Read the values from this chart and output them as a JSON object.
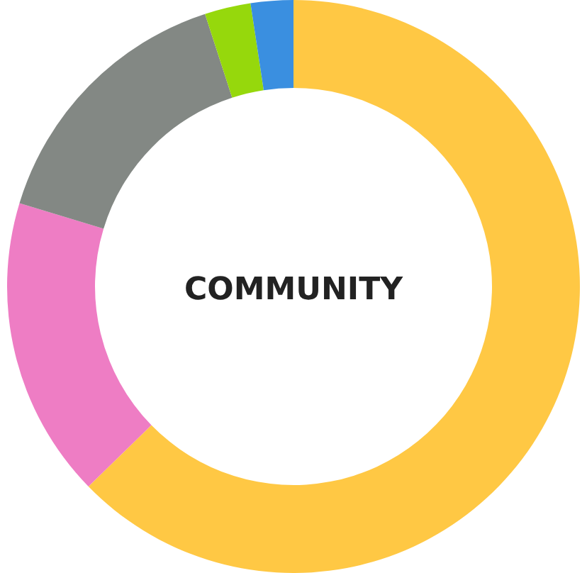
{
  "chart_data": {
    "type": "donut",
    "title": "COMMUNITY",
    "categories": [
      null,
      null,
      null,
      null,
      null
    ],
    "values": [
      62.7,
      17.0,
      15.3,
      2.6,
      2.4
    ],
    "colors": [
      "#ffc844",
      "#ee7dc4",
      "#838884",
      "#96d80c",
      "#3a8fe0"
    ],
    "legend": false
  }
}
